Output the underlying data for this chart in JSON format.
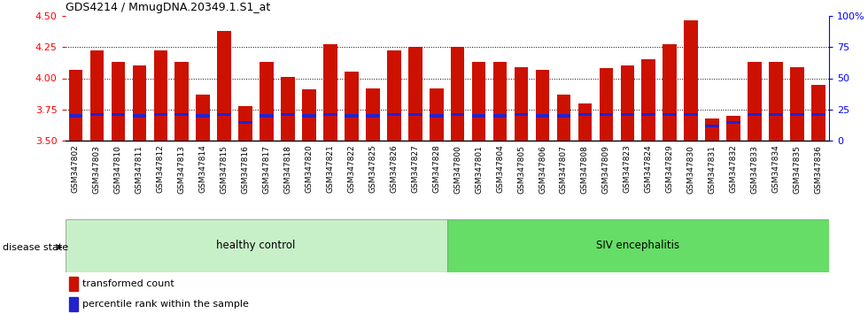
{
  "title": "GDS4214 / MmugDNA.20349.1.S1_at",
  "samples": [
    "GSM347802",
    "GSM347803",
    "GSM347810",
    "GSM347811",
    "GSM347812",
    "GSM347813",
    "GSM347814",
    "GSM347815",
    "GSM347816",
    "GSM347817",
    "GSM347818",
    "GSM347820",
    "GSM347821",
    "GSM347822",
    "GSM347825",
    "GSM347826",
    "GSM347827",
    "GSM347828",
    "GSM347800",
    "GSM347801",
    "GSM347804",
    "GSM347805",
    "GSM347806",
    "GSM347807",
    "GSM347808",
    "GSM347809",
    "GSM347823",
    "GSM347824",
    "GSM347829",
    "GSM347830",
    "GSM347831",
    "GSM347832",
    "GSM347833",
    "GSM347834",
    "GSM347835",
    "GSM347836"
  ],
  "bar_values": [
    4.07,
    4.22,
    4.13,
    4.1,
    4.22,
    4.13,
    3.87,
    4.38,
    3.78,
    4.13,
    4.01,
    3.91,
    4.27,
    4.05,
    3.92,
    4.22,
    4.25,
    3.92,
    4.25,
    4.13,
    4.13,
    4.09,
    4.07,
    3.87,
    3.8,
    4.08,
    4.1,
    4.15,
    4.27,
    4.46,
    3.68,
    3.7,
    4.13,
    4.13,
    4.09,
    3.95
  ],
  "percentile_values": [
    3.7,
    3.71,
    3.71,
    3.7,
    3.71,
    3.71,
    3.7,
    3.71,
    3.65,
    3.7,
    3.71,
    3.7,
    3.71,
    3.7,
    3.7,
    3.71,
    3.71,
    3.7,
    3.71,
    3.7,
    3.7,
    3.71,
    3.7,
    3.7,
    3.71,
    3.71,
    3.71,
    3.71,
    3.71,
    3.71,
    3.62,
    3.65,
    3.71,
    3.71,
    3.71,
    3.71
  ],
  "group_labels": [
    "healthy control",
    "SIV encephalitis"
  ],
  "group_counts": [
    18,
    18
  ],
  "group_colors_light": [
    "#c8f0c8",
    "#66dd66"
  ],
  "bar_color": "#cc1100",
  "percentile_color": "#2222cc",
  "ylim": [
    3.5,
    4.5
  ],
  "yticks": [
    3.5,
    3.75,
    4.0,
    4.25,
    4.5
  ],
  "right_yticks": [
    0,
    25,
    50,
    75,
    100
  ],
  "right_yticklabels": [
    "0",
    "25",
    "50",
    "75",
    "100%"
  ],
  "legend_items": [
    "transformed count",
    "percentile rank within the sample"
  ]
}
